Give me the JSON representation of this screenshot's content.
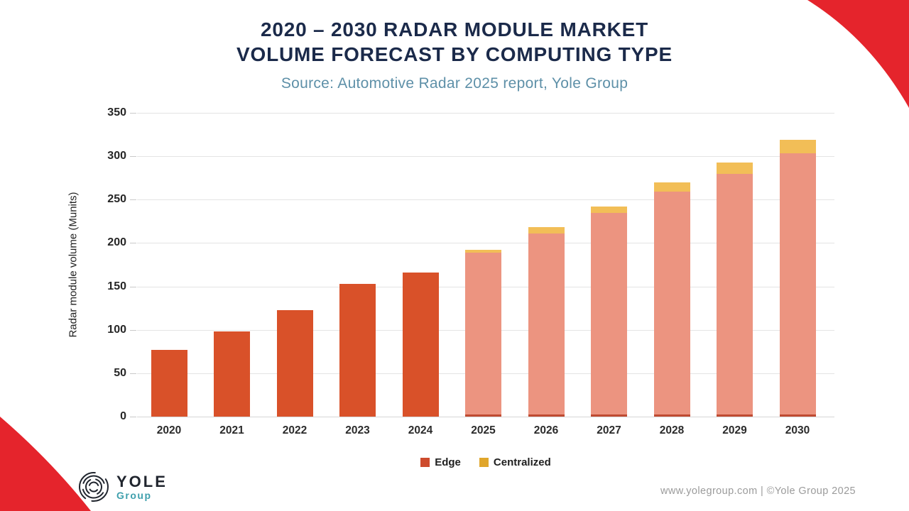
{
  "title": {
    "line1": "2020 – 2030 RADAR MODULE MARKET",
    "line2": "VOLUME FORECAST BY COMPUTING TYPE"
  },
  "subtitle": "Source: Automotive Radar 2025 report, Yole Group",
  "legend": [
    {
      "label": "Edge",
      "color": "#cd4b2d"
    },
    {
      "label": "Centralized",
      "color": "#e0a62b"
    }
  ],
  "footer": {
    "logo_name": "YOLE",
    "logo_sub": "Group",
    "credit": "www.yolegroup.com | ©Yole Group 2025"
  },
  "colors": {
    "corner_red": "#e5242c",
    "title_navy": "#1b2a4a",
    "subtitle_teal": "#5e90a8",
    "footer_gray": "#9b9b9b",
    "logo_teal": "#3fa0ad",
    "logo_dark": "#20252e"
  },
  "chart_data": {
    "type": "bar",
    "stacked": true,
    "title": "2020 – 2030 Radar module market volume forecast by computing type",
    "categories": [
      "2020",
      "2021",
      "2022",
      "2023",
      "2024",
      "2025",
      "2026",
      "2027",
      "2028",
      "2029",
      "2030"
    ],
    "series": [
      {
        "name": "Edge",
        "values": [
          77,
          98,
          123,
          153,
          166,
          189,
          211,
          235,
          259,
          280,
          303
        ]
      },
      {
        "name": "Centralized",
        "values": [
          0,
          0,
          0,
          0,
          0,
          3,
          7,
          7,
          11,
          13,
          16
        ]
      }
    ],
    "totals": [
      77,
      98,
      123,
      153,
      166,
      192,
      218,
      242,
      270,
      293,
      319
    ],
    "xlabel": "",
    "ylabel": "Radar module volume (Munits)",
    "ylim": [
      0,
      350
    ],
    "yticks": [
      0,
      50,
      100,
      150,
      200,
      250,
      300,
      350
    ],
    "grid": true,
    "legend_position": "bottom",
    "forecast_start_index": 5,
    "colors": {
      "edge_actual": "#d95129",
      "edge_forecast": "#ec9480",
      "centralized": "#f2be57",
      "forecast_base_strip": "#bf4a31"
    }
  }
}
